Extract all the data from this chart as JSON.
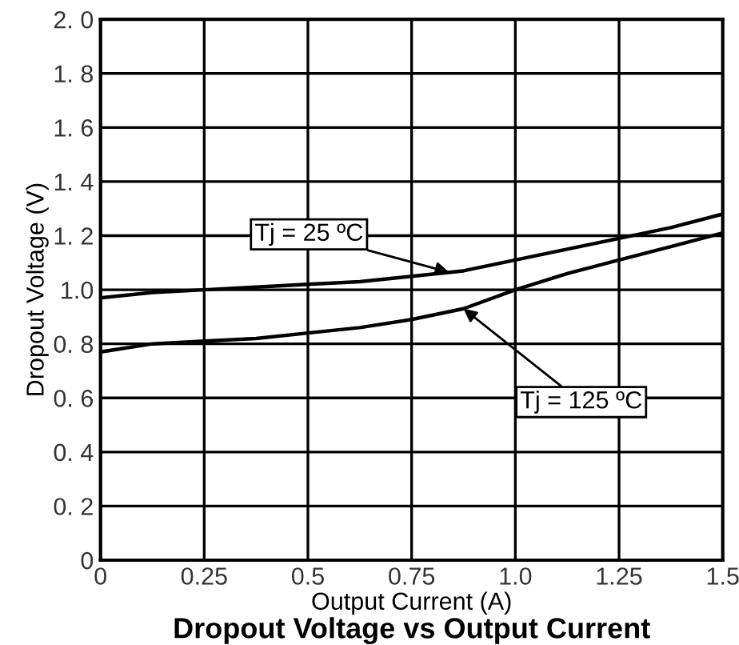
{
  "chart_data": {
    "type": "line",
    "title": "Dropout Voltage vs Output Current",
    "xlabel": "Output Current (A)",
    "ylabel": "Dropout Voltage (V)",
    "xlim": [
      0,
      1.5
    ],
    "xticks": [
      0,
      0.25,
      0.5,
      0.75,
      {
        "value": 1.0,
        "label": "1.0"
      },
      1.25,
      1.5
    ],
    "ylim": [
      0,
      2.0
    ],
    "yticks": [
      0,
      {
        "value": 0.2,
        "label": "0. 2"
      },
      {
        "value": 0.4,
        "label": "0. 4"
      },
      {
        "value": 0.6,
        "label": "0. 6"
      },
      {
        "value": 0.8,
        "label": "0. 8"
      },
      {
        "value": 1.0,
        "label": "1.0"
      },
      {
        "value": 1.2,
        "label": "1. 2"
      },
      {
        "value": 1.4,
        "label": "1. 4"
      },
      {
        "value": 1.6,
        "label": "1. 6"
      },
      {
        "value": 1.8,
        "label": "1. 8"
      },
      {
        "value": 2.0,
        "label": "2. 0"
      }
    ],
    "grid": true,
    "marker": "none",
    "line_style": "solid",
    "x": [
      0,
      0.125,
      0.25,
      0.375,
      0.5,
      0.625,
      0.75,
      0.875,
      1.0,
      1.125,
      1.25,
      1.375,
      1.5
    ],
    "series": [
      {
        "color": "#000000",
        "values": [
          0.97,
          0.99,
          1.0,
          1.01,
          1.02,
          1.03,
          1.05,
          1.07,
          1.11,
          1.15,
          1.19,
          1.23,
          1.28
        ]
      },
      {
        "color": "#000000",
        "values": [
          0.77,
          0.8,
          0.81,
          0.82,
          0.84,
          0.86,
          0.89,
          0.93,
          1.0,
          1.06,
          1.11,
          1.16,
          1.21
        ]
      }
    ],
    "annotations": [
      {
        "text": "Tj = 25 ºC",
        "x": 0.84,
        "y": 1.065
      },
      {
        "text": "Tj = 125 ºC",
        "x": 0.875,
        "y": 0.93
      }
    ]
  }
}
